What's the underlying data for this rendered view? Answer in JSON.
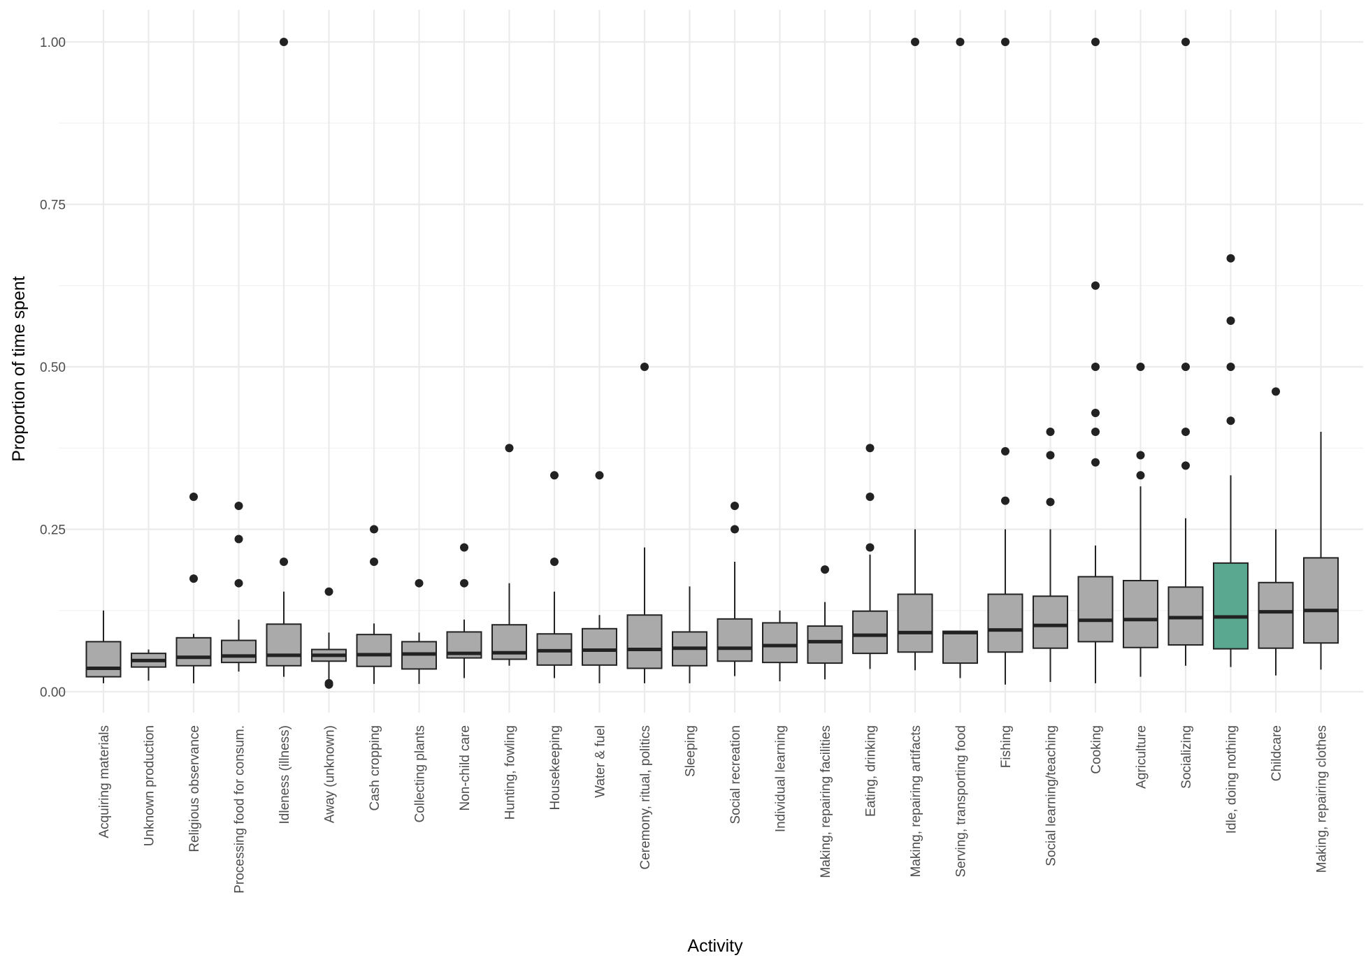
{
  "chart_data": {
    "type": "boxplot",
    "xlabel": "Activity",
    "ylabel": "Proportion of time spent",
    "ylim": [
      0,
      1
    ],
    "yticks": [
      "0.00",
      "0.25",
      "0.50",
      "0.75",
      "1.00"
    ],
    "grid": true,
    "legend": "none",
    "colors": {
      "default_fill": "#aaaaaa",
      "highlight_fill": "#5aa88f",
      "stroke": "#222222",
      "point": "#222222"
    },
    "categories": [
      "Acquiring materials",
      "Unknown production",
      "Religious observance",
      "Processing food for consum.",
      "Idleness (illness)",
      "Away (unknown)",
      "Cash cropping",
      "Collecting plants",
      "Non-child care",
      "Hunting, fowling",
      "Housekeeping",
      "Water & fuel",
      "Ceremony, ritual, politics",
      "Sleeping",
      "Social recreation",
      "Individual learning",
      "Making, repairing facilities",
      "Eating, drinking",
      "Making, repairing artifacts",
      "Serving, transporting food",
      "Fishing",
      "Social learning/teaching",
      "Cooking",
      "Agriculture",
      "Socializing",
      "Idle, doing nothing",
      "Childcare",
      "Making, repairing clothes"
    ],
    "boxes": [
      {
        "wlo": 0.013,
        "q1": 0.023,
        "med": 0.036,
        "q3": 0.077,
        "whi": 0.125,
        "outliers": [],
        "highlight": false
      },
      {
        "wlo": 0.017,
        "q1": 0.038,
        "med": 0.048,
        "q3": 0.059,
        "whi": 0.065,
        "outliers": [],
        "highlight": false
      },
      {
        "wlo": 0.013,
        "q1": 0.04,
        "med": 0.053,
        "q3": 0.083,
        "whi": 0.089,
        "outliers": [
          0.174,
          0.3
        ],
        "highlight": false
      },
      {
        "wlo": 0.031,
        "q1": 0.045,
        "med": 0.055,
        "q3": 0.079,
        "whi": 0.111,
        "outliers": [
          0.167,
          0.235,
          0.286
        ],
        "highlight": false
      },
      {
        "wlo": 0.023,
        "q1": 0.04,
        "med": 0.056,
        "q3": 0.104,
        "whi": 0.154,
        "outliers": [
          0.2,
          1.0
        ],
        "highlight": false
      },
      {
        "wlo": 0.019,
        "q1": 0.047,
        "med": 0.056,
        "q3": 0.065,
        "whi": 0.091,
        "outliers": [
          0.011,
          0.013,
          0.154
        ],
        "highlight": false
      },
      {
        "wlo": 0.012,
        "q1": 0.039,
        "med": 0.057,
        "q3": 0.088,
        "whi": 0.105,
        "outliers": [
          0.2,
          0.25
        ],
        "highlight": false
      },
      {
        "wlo": 0.012,
        "q1": 0.035,
        "med": 0.058,
        "q3": 0.077,
        "whi": 0.091,
        "outliers": [
          0.167
        ],
        "highlight": false
      },
      {
        "wlo": 0.021,
        "q1": 0.052,
        "med": 0.059,
        "q3": 0.092,
        "whi": 0.111,
        "outliers": [
          0.167,
          0.222
        ],
        "highlight": false
      },
      {
        "wlo": 0.04,
        "q1": 0.05,
        "med": 0.06,
        "q3": 0.103,
        "whi": 0.167,
        "outliers": [
          0.375
        ],
        "highlight": false
      },
      {
        "wlo": 0.021,
        "q1": 0.041,
        "med": 0.063,
        "q3": 0.089,
        "whi": 0.154,
        "outliers": [
          0.2,
          0.333
        ],
        "highlight": false
      },
      {
        "wlo": 0.013,
        "q1": 0.041,
        "med": 0.064,
        "q3": 0.097,
        "whi": 0.118,
        "outliers": [
          0.333
        ],
        "highlight": false
      },
      {
        "wlo": 0.013,
        "q1": 0.036,
        "med": 0.065,
        "q3": 0.118,
        "whi": 0.222,
        "outliers": [
          0.5
        ],
        "highlight": false
      },
      {
        "wlo": 0.013,
        "q1": 0.04,
        "med": 0.067,
        "q3": 0.092,
        "whi": 0.162,
        "outliers": [],
        "highlight": false
      },
      {
        "wlo": 0.024,
        "q1": 0.047,
        "med": 0.067,
        "q3": 0.112,
        "whi": 0.2,
        "outliers": [
          0.25,
          0.286
        ],
        "highlight": false
      },
      {
        "wlo": 0.016,
        "q1": 0.045,
        "med": 0.071,
        "q3": 0.106,
        "whi": 0.125,
        "outliers": [],
        "highlight": false
      },
      {
        "wlo": 0.019,
        "q1": 0.044,
        "med": 0.077,
        "q3": 0.101,
        "whi": 0.138,
        "outliers": [
          0.188
        ],
        "highlight": false
      },
      {
        "wlo": 0.035,
        "q1": 0.059,
        "med": 0.087,
        "q3": 0.124,
        "whi": 0.211,
        "outliers": [
          0.222,
          0.3,
          0.375
        ],
        "highlight": false
      },
      {
        "wlo": 0.033,
        "q1": 0.061,
        "med": 0.091,
        "q3": 0.15,
        "whi": 0.25,
        "outliers": [
          1.0
        ],
        "highlight": false
      },
      {
        "wlo": 0.021,
        "q1": 0.044,
        "med": 0.091,
        "q3": 0.093,
        "whi": 0.093,
        "outliers": [
          1.0
        ],
        "highlight": false
      },
      {
        "wlo": 0.011,
        "q1": 0.061,
        "med": 0.095,
        "q3": 0.15,
        "whi": 0.25,
        "outliers": [
          0.294,
          0.37,
          1.0
        ],
        "highlight": false
      },
      {
        "wlo": 0.015,
        "q1": 0.067,
        "med": 0.102,
        "q3": 0.147,
        "whi": 0.25,
        "outliers": [
          0.292,
          0.364,
          0.4
        ],
        "highlight": false
      },
      {
        "wlo": 0.013,
        "q1": 0.077,
        "med": 0.11,
        "q3": 0.177,
        "whi": 0.225,
        "outliers": [
          0.353,
          0.4,
          0.429,
          0.5,
          0.625,
          1.0
        ],
        "highlight": false
      },
      {
        "wlo": 0.023,
        "q1": 0.068,
        "med": 0.111,
        "q3": 0.171,
        "whi": 0.316,
        "outliers": [
          0.333,
          0.364,
          0.5
        ],
        "highlight": false
      },
      {
        "wlo": 0.04,
        "q1": 0.072,
        "med": 0.114,
        "q3": 0.161,
        "whi": 0.267,
        "outliers": [
          0.348,
          0.4,
          0.5,
          1.0
        ],
        "highlight": false
      },
      {
        "wlo": 0.038,
        "q1": 0.066,
        "med": 0.115,
        "q3": 0.198,
        "whi": 0.333,
        "outliers": [
          0.417,
          0.5,
          0.571,
          0.667
        ],
        "highlight": true
      },
      {
        "wlo": 0.025,
        "q1": 0.067,
        "med": 0.123,
        "q3": 0.168,
        "whi": 0.25,
        "outliers": [
          0.462
        ],
        "highlight": false
      },
      {
        "wlo": 0.034,
        "q1": 0.075,
        "med": 0.125,
        "q3": 0.206,
        "whi": 0.4,
        "outliers": [],
        "highlight": false
      }
    ]
  }
}
